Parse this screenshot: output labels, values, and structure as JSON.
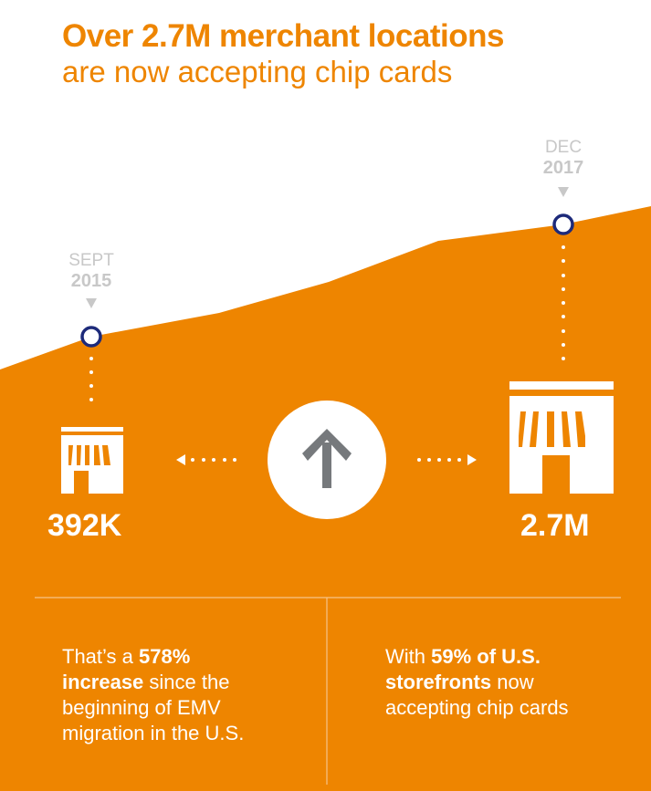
{
  "header": {
    "title_bold": "Over 2.7M merchant locations",
    "title_light": "are now accepting chip cards"
  },
  "timeline": {
    "start": {
      "month": "SEPT",
      "year": "2015",
      "value": "392K"
    },
    "end": {
      "month": "DEC",
      "year": "2017",
      "value": "2.7M"
    }
  },
  "center_icon": "up-arrow-icon",
  "stats": {
    "left": {
      "pre": "That’s a ",
      "bold1": "578%",
      "bold2": "increase",
      "post": " since the beginning of EMV migration in the U.S."
    },
    "right": {
      "pre": "With ",
      "bold": "59% of U.S. storefronts",
      "post": " now accepting chip cards"
    }
  },
  "colors": {
    "orange": "#EE8500",
    "navy": "#1d2a7a",
    "grey": "#76797c",
    "date_grey": "#c8c8c8"
  }
}
